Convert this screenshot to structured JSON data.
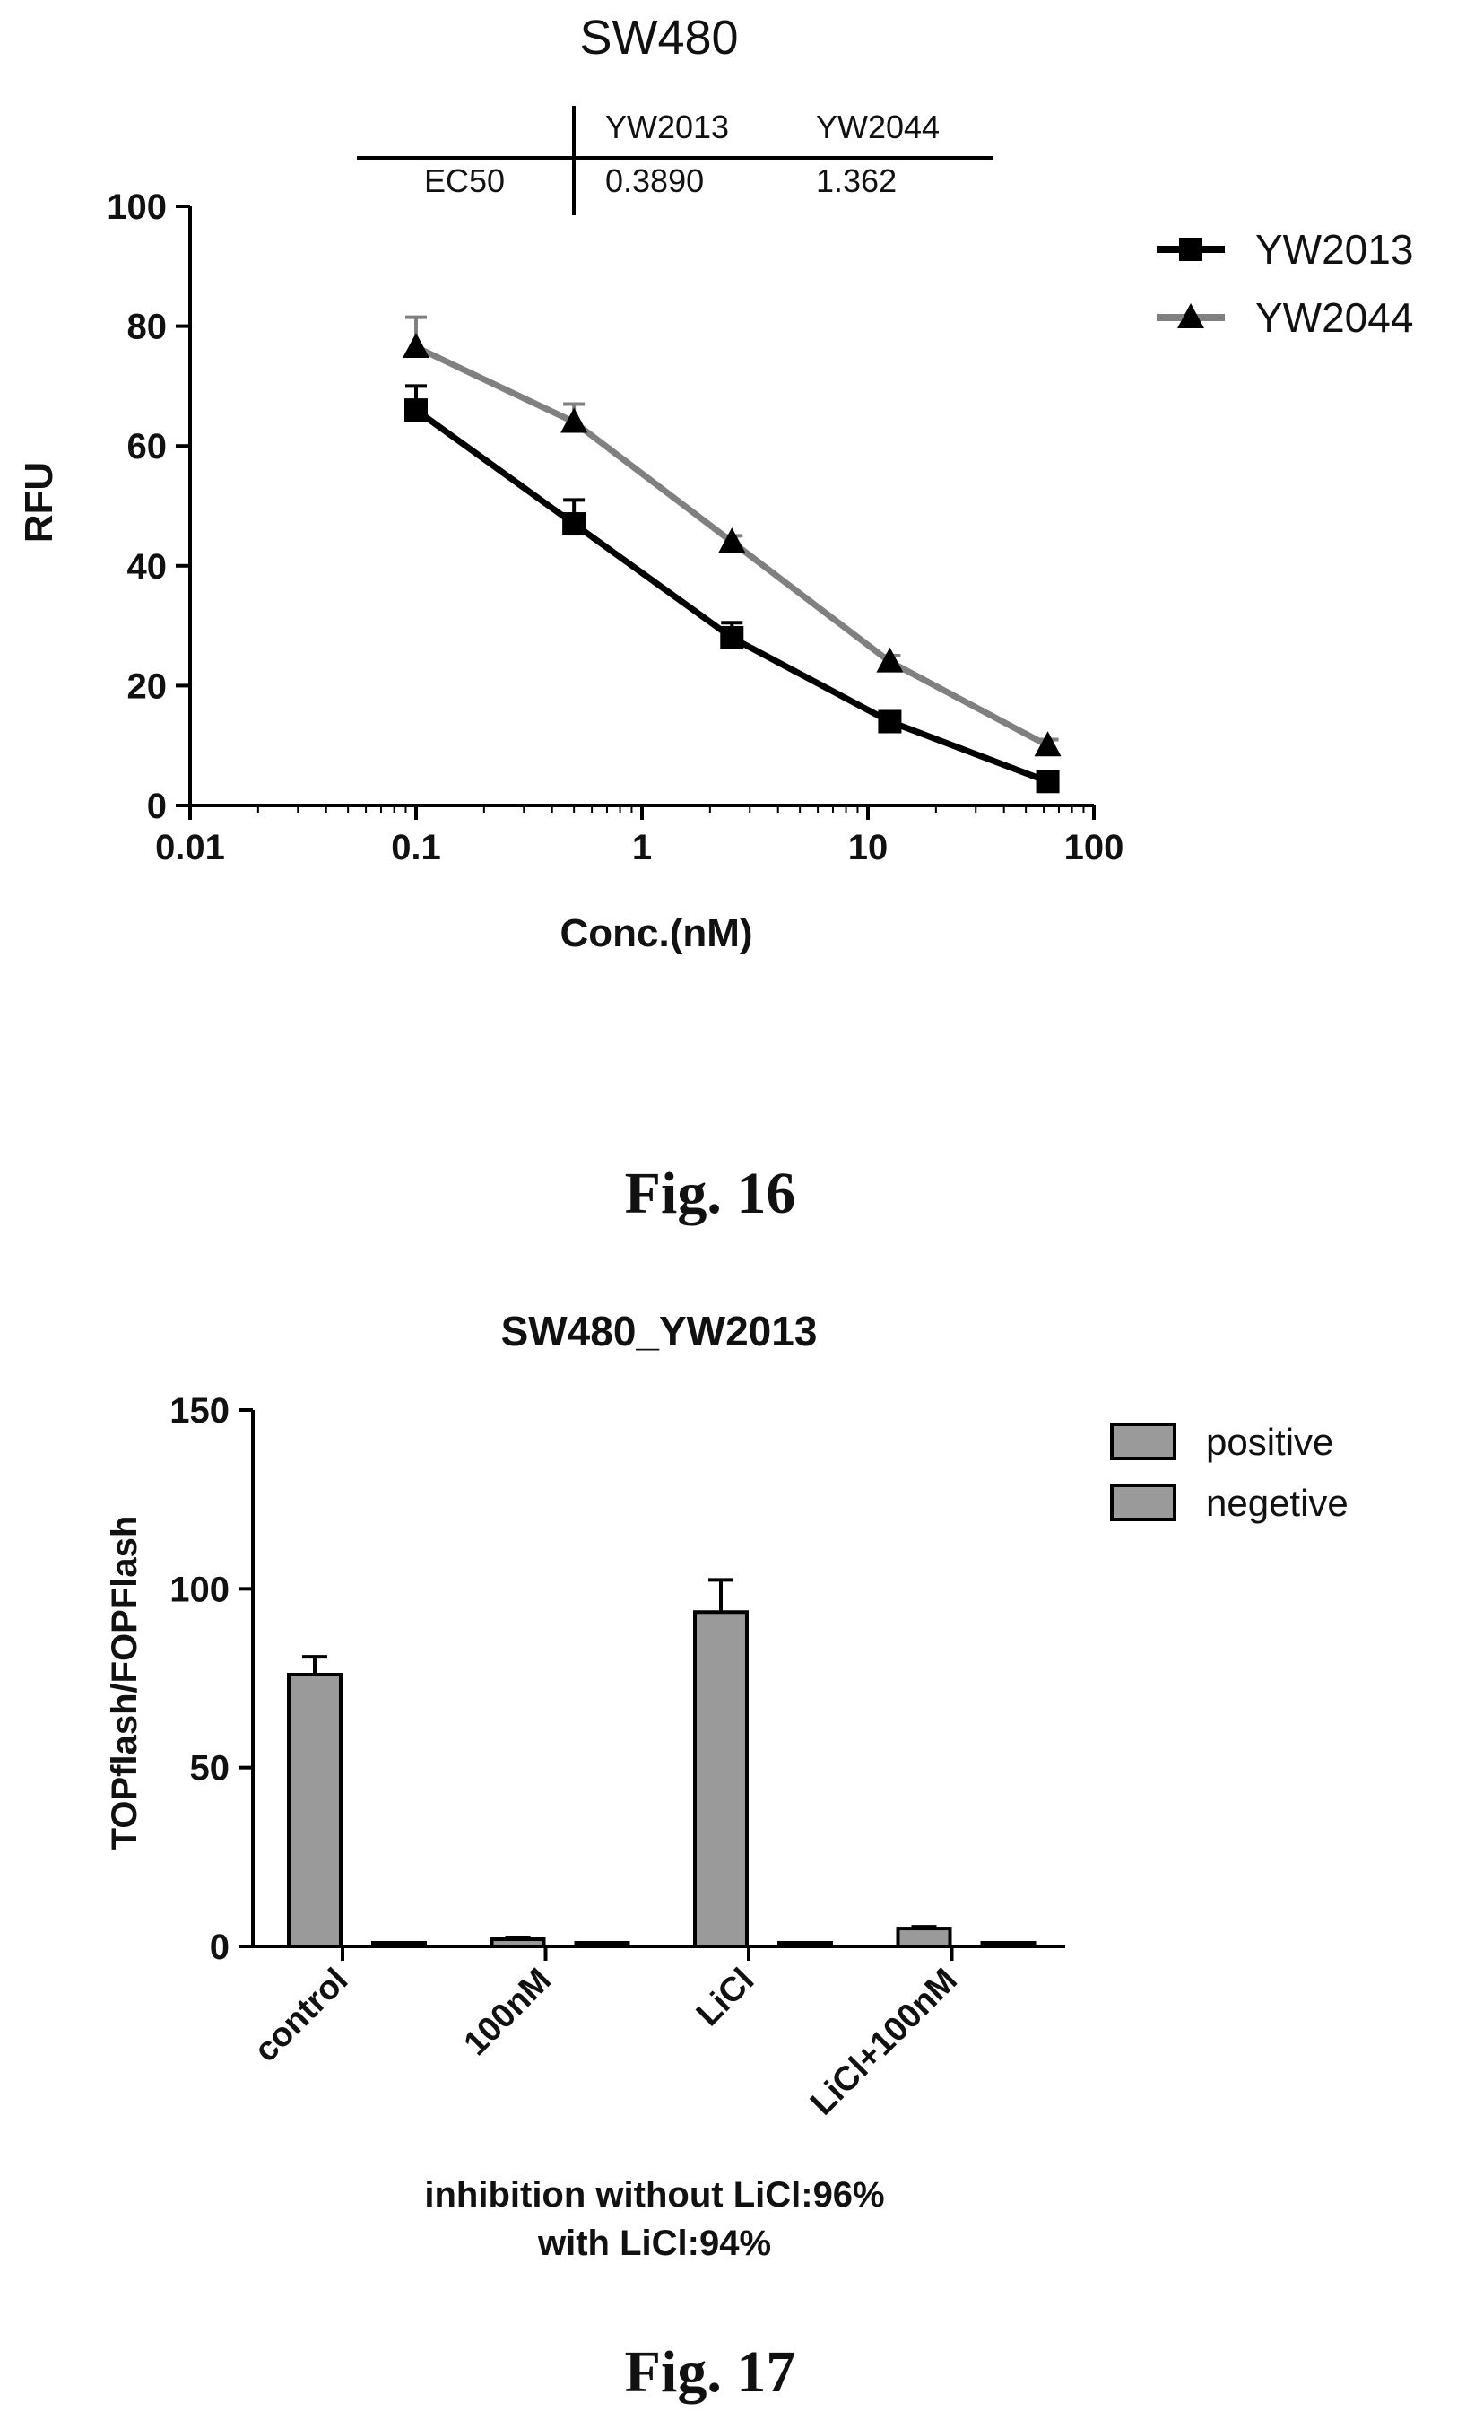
{
  "figures": [
    {
      "caption": "Fig. 16",
      "chart_data": {
        "type": "line",
        "title": "SW480",
        "xlabel": "Conc.(nM)",
        "ylabel": "RFU",
        "xscale": "log",
        "xlim": [
          0.01,
          100
        ],
        "ylim": [
          0,
          100
        ],
        "xticks": [
          0.01,
          0.1,
          1,
          10,
          100
        ],
        "xtick_labels": [
          "0.01",
          "0.1",
          "1",
          "10",
          "100"
        ],
        "yticks": [
          0,
          20,
          40,
          60,
          80,
          100
        ],
        "ytick_labels": [
          "0",
          "20",
          "40",
          "60",
          "80",
          "100"
        ],
        "legend_position": "top-right",
        "grid": false,
        "x": [
          0.1,
          0.5,
          2.5,
          12.5,
          62.5
        ],
        "series": [
          {
            "name": "YW2013",
            "marker": "square",
            "color": "#000000",
            "values": [
              66,
              47,
              28,
              14,
              4
            ],
            "errors": [
              4,
              4,
              2.5,
              1,
              1
            ]
          },
          {
            "name": "YW2044",
            "marker": "triangle",
            "color": "#808080",
            "values": [
              76.5,
              64,
              44,
              24,
              10
            ],
            "errors": [
              5,
              3,
              1,
              1,
              1
            ]
          }
        ],
        "ec50_table": {
          "row_label": "EC50",
          "columns": [
            "YW2013",
            "YW2044"
          ],
          "values": [
            "0.3890",
            "1.362"
          ]
        }
      }
    },
    {
      "caption": "Fig. 17",
      "chart_data": {
        "type": "bar",
        "title": "SW480_YW2013",
        "xlabel": "",
        "ylabel": "TOPflash/FOPFlash",
        "ylim": [
          0,
          150
        ],
        "yticks": [
          0,
          50,
          100,
          150
        ],
        "ytick_labels": [
          "0",
          "50",
          "100",
          "150"
        ],
        "categories": [
          "control",
          "100nM",
          "LiCl",
          "LiCl+100nM"
        ],
        "legend_position": "top-right",
        "grid": false,
        "series": [
          {
            "name": "positive",
            "color": "#9a9a9a",
            "values": [
              76,
              2,
              93.5,
              5
            ],
            "errors": [
              5,
              0.5,
              9,
              0.5
            ]
          },
          {
            "name": "negetive",
            "color": "#9a9a9a",
            "values": [
              0.5,
              0.3,
              0.5,
              0.3
            ],
            "errors": [
              0,
              0,
              0,
              0
            ]
          }
        ],
        "annotations": [
          "inhibition without LiCl:96%",
          "with LiCl:94%"
        ]
      }
    }
  ]
}
